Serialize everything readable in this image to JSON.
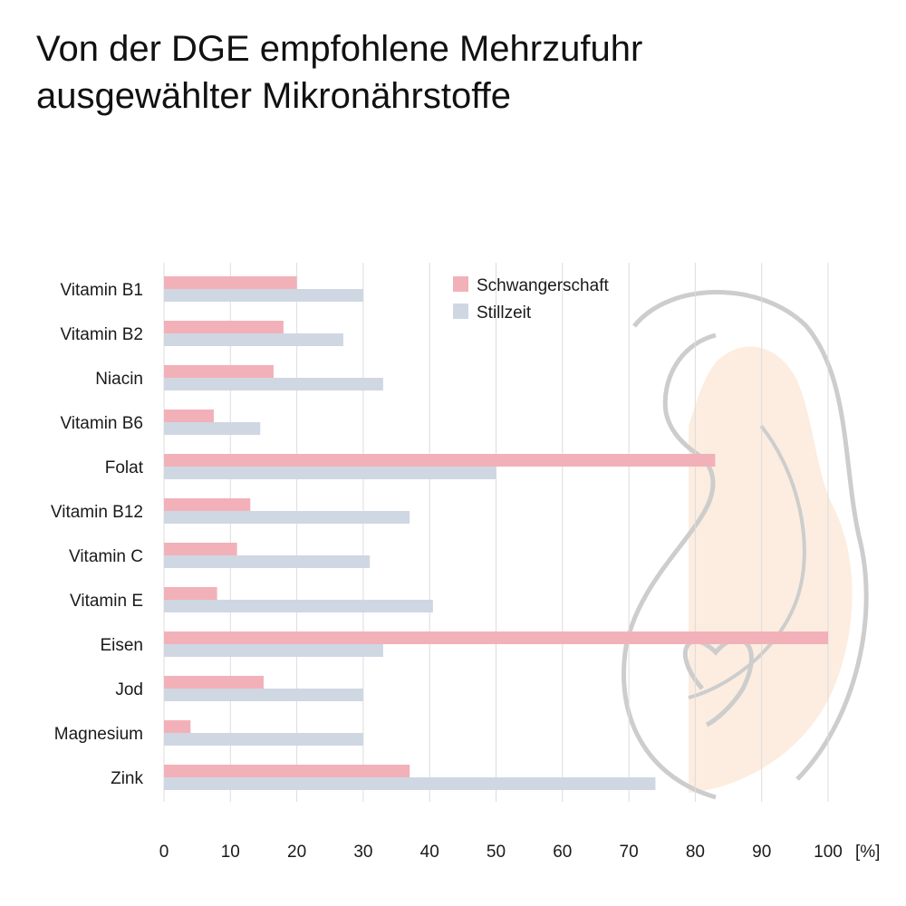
{
  "title_line1": "Von der DGE empfohlene Mehrzufuhr",
  "title_line2": "ausgewählter Mikronährstoffe",
  "chart_data": {
    "type": "bar",
    "orientation": "horizontal",
    "categories": [
      "Vitamin B1",
      "Vitamin B2",
      "Niacin",
      "Vitamin B6",
      "Folat",
      "Vitamin B12",
      "Vitamin C",
      "Vitamin E",
      "Eisen",
      "Jod",
      "Magnesium",
      "Zink"
    ],
    "series": [
      {
        "name": "Schwangerschaft",
        "color": "#f2b1b8",
        "values": [
          20,
          18,
          16.5,
          7.5,
          83,
          13,
          11,
          8,
          100,
          15,
          4,
          37
        ]
      },
      {
        "name": "Stillzeit",
        "color": "#cfd7e3",
        "values": [
          30,
          27,
          33,
          14.5,
          50,
          37,
          31,
          40.5,
          33,
          30,
          30,
          74
        ]
      }
    ],
    "xticks": [
      0,
      10,
      20,
      30,
      40,
      50,
      60,
      70,
      80,
      90,
      100
    ],
    "xlim": [
      0,
      100
    ],
    "xunit": "[%]",
    "grid": "vertical",
    "legend_position": "top-right"
  }
}
